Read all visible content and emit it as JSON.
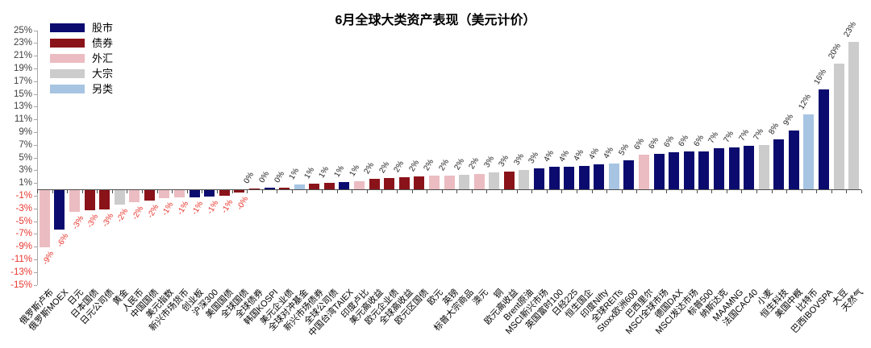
{
  "chart_data": {
    "type": "bar",
    "title": "6月全球大类资产表现（美元计价）",
    "unit": "%",
    "ylim": [
      -15,
      25
    ],
    "ytick_step": 2,
    "grid": false,
    "legend_position": "top-left",
    "axis_label_colors": {
      "positive": "#3f3f3f",
      "negative": "#e8362f"
    },
    "legend": [
      {
        "key": "equity",
        "label": "股市",
        "color": "#0b0b6f"
      },
      {
        "key": "bonds",
        "label": "债券",
        "color": "#8a1319"
      },
      {
        "key": "fx",
        "label": "外汇",
        "color": "#ebbcc1"
      },
      {
        "key": "commodities",
        "label": "大宗",
        "color": "#cccccc"
      },
      {
        "key": "alternatives",
        "label": "另类",
        "color": "#a7c4e2"
      }
    ],
    "colors": {
      "股市": "#0b0b6f",
      "债券": "#8a1319",
      "外汇": "#ebbcc1",
      "大宗": "#cccccc",
      "另类": "#a7c4e2"
    },
    "points": [
      {
        "name": "俄罗斯卢布",
        "category": "外汇",
        "value": -9.0,
        "label": "-9%"
      },
      {
        "name": "俄罗斯MOEX",
        "category": "股市",
        "value": -6.2,
        "label": "-6%"
      },
      {
        "name": "日元",
        "category": "外汇",
        "value": -3.4,
        "label": "-3%"
      },
      {
        "name": "日本国债",
        "category": "债券",
        "value": -3.2,
        "label": "-3%"
      },
      {
        "name": "日元公司债",
        "category": "债券",
        "value": -3.1,
        "label": "-3%"
      },
      {
        "name": "黄金",
        "category": "大宗",
        "value": -2.3,
        "label": "-2%"
      },
      {
        "name": "人民币",
        "category": "外汇",
        "value": -1.9,
        "label": "-2%"
      },
      {
        "name": "中国国债",
        "category": "债券",
        "value": -1.6,
        "label": "-2%"
      },
      {
        "name": "美元指数",
        "category": "外汇",
        "value": -1.3,
        "label": "-1%"
      },
      {
        "name": "新兴市场货币",
        "category": "外汇",
        "value": -1.2,
        "label": "-1%"
      },
      {
        "name": "创业板",
        "category": "股市",
        "value": -1.1,
        "label": "-1%"
      },
      {
        "name": "沪深300",
        "category": "股市",
        "value": -1.0,
        "label": "-1%"
      },
      {
        "name": "美国国债",
        "category": "债券",
        "value": -0.9,
        "label": "-1%"
      },
      {
        "name": "全球国债",
        "category": "债券",
        "value": -0.4,
        "label": "-0%"
      },
      {
        "name": "全球债券",
        "category": "债券",
        "value": 0.1,
        "label": "0%"
      },
      {
        "name": "韩国KOSPI",
        "category": "股市",
        "value": 0.2,
        "label": "0%"
      },
      {
        "name": "美元企业债",
        "category": "债券",
        "value": 0.3,
        "label": "0%"
      },
      {
        "name": "全球对冲基金",
        "category": "另类",
        "value": 0.7,
        "label": "1%"
      },
      {
        "name": "新兴市场债券",
        "category": "债券",
        "value": 0.9,
        "label": "1%"
      },
      {
        "name": "全球公司债",
        "category": "债券",
        "value": 1.0,
        "label": "1%"
      },
      {
        "name": "中国台湾TAIEX",
        "category": "股市",
        "value": 1.1,
        "label": "1%"
      },
      {
        "name": "印度卢比",
        "category": "外汇",
        "value": 1.3,
        "label": "1%"
      },
      {
        "name": "美元高收益",
        "category": "债券",
        "value": 1.6,
        "label": "2%"
      },
      {
        "name": "欧元企业债",
        "category": "债券",
        "value": 1.8,
        "label": "2%"
      },
      {
        "name": "全球高收益",
        "category": "债券",
        "value": 1.9,
        "label": "2%"
      },
      {
        "name": "欧元区国债",
        "category": "债券",
        "value": 2.0,
        "label": "2%"
      },
      {
        "name": "欧元",
        "category": "外汇",
        "value": 2.1,
        "label": "2%"
      },
      {
        "name": "英镑",
        "category": "外汇",
        "value": 2.2,
        "label": "2%"
      },
      {
        "name": "标普大宗商品",
        "category": "大宗",
        "value": 2.3,
        "label": "2%"
      },
      {
        "name": "澳元",
        "category": "外汇",
        "value": 2.4,
        "label": "2%"
      },
      {
        "name": "铜",
        "category": "大宗",
        "value": 2.6,
        "label": "3%"
      },
      {
        "name": "欧元高收益",
        "category": "债券",
        "value": 2.8,
        "label": "3%"
      },
      {
        "name": "Brent原油",
        "category": "大宗",
        "value": 3.0,
        "label": "3%"
      },
      {
        "name": "MSCI新兴市场",
        "category": "股市",
        "value": 3.3,
        "label": "3%"
      },
      {
        "name": "英国富时100",
        "category": "股市",
        "value": 3.5,
        "label": "4%"
      },
      {
        "name": "日经225",
        "category": "股市",
        "value": 3.6,
        "label": "4%"
      },
      {
        "name": "恒生国企",
        "category": "股市",
        "value": 3.7,
        "label": "4%"
      },
      {
        "name": "印度Nifty",
        "category": "股市",
        "value": 3.9,
        "label": "4%"
      },
      {
        "name": "全球REITs",
        "category": "另类",
        "value": 4.0,
        "label": "4%"
      },
      {
        "name": "Stoxx欧洲600",
        "category": "股市",
        "value": 4.6,
        "label": "5%"
      },
      {
        "name": "巴西里尔",
        "category": "外汇",
        "value": 5.5,
        "label": "6%"
      },
      {
        "name": "MSCI全球市场",
        "category": "股市",
        "value": 5.6,
        "label": "6%"
      },
      {
        "name": "德国DAX",
        "category": "股市",
        "value": 5.8,
        "label": "6%"
      },
      {
        "name": "MSCI发达市场",
        "category": "股市",
        "value": 5.9,
        "label": "6%"
      },
      {
        "name": "标普500",
        "category": "股市",
        "value": 6.0,
        "label": "6%"
      },
      {
        "name": "纳斯达克",
        "category": "股市",
        "value": 6.5,
        "label": "7%"
      },
      {
        "name": "MAAMNG",
        "category": "股市",
        "value": 6.6,
        "label": "7%"
      },
      {
        "name": "法国CAC40",
        "category": "股市",
        "value": 6.8,
        "label": "7%"
      },
      {
        "name": "小麦",
        "category": "大宗",
        "value": 7.0,
        "label": "7%"
      },
      {
        "name": "恒生科技",
        "category": "股市",
        "value": 7.9,
        "label": "8%"
      },
      {
        "name": "美国中概",
        "category": "股市",
        "value": 9.2,
        "label": "9%"
      },
      {
        "name": "比特币",
        "category": "另类",
        "value": 11.8,
        "label": "12%"
      },
      {
        "name": "巴西IBOVSPA",
        "category": "股市",
        "value": 15.7,
        "label": "16%"
      },
      {
        "name": "大豆",
        "category": "大宗",
        "value": 19.7,
        "label": "20%"
      },
      {
        "name": "天然气",
        "category": "大宗",
        "value": 23.2,
        "label": "23%"
      }
    ]
  }
}
